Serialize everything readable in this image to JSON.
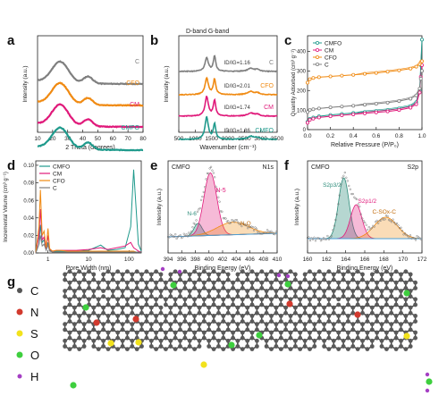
{
  "colors": {
    "C": "#7f7f7f",
    "CFO": "#f08a12",
    "CM": "#e0197a",
    "CMFO": "#1f9a8c",
    "blue": "#4a9fd8"
  },
  "panels": {
    "a": {
      "letter": "a",
      "xlabel": "2 Theta (degrees)",
      "ylabel": "Intensity (a.u.)",
      "xticks": [
        "10",
        "20",
        "30",
        "40",
        "50",
        "60",
        "70",
        "80"
      ],
      "labels": [
        "C",
        "CFO",
        "CM",
        "CMFO"
      ]
    },
    "b": {
      "letter": "b",
      "xlabel": "Wavenumber (cm⁻¹)",
      "ylabel": "Intensity (a.u.)",
      "xticks": [
        "500",
        "1000",
        "1500",
        "2000",
        "2500",
        "3000",
        "3500"
      ],
      "header": "D-band G-band",
      "labels": [
        "C",
        "CFO",
        "CM",
        "CMFO"
      ],
      "ratios": [
        "ID/IG=1.16",
        "ID/IG=2.01",
        "ID/IG=1.74",
        "ID/IG=1.86"
      ]
    },
    "c": {
      "letter": "c",
      "xlabel": "Relative Pressure (P/P₀)",
      "ylabel": "Quantity Adsorbed (cm³ g⁻¹)",
      "xticks": [
        "0.0",
        "0.2",
        "0.4",
        "0.6",
        "0.8",
        "1.0"
      ],
      "yticks": [
        "0",
        "100",
        "200",
        "300",
        "400"
      ],
      "legend": [
        "CMFO",
        "CM",
        "CFO",
        "C"
      ]
    },
    "d": {
      "letter": "d",
      "xlabel": "Pore Width (nm)",
      "ylabel": "Incremental Volume (cm³ g⁻¹)",
      "xticks": [
        "1",
        "10",
        "100"
      ],
      "yticks": [
        "0.00",
        "0.02",
        "0.04",
        "0.06",
        "0.08",
        "0.10"
      ],
      "legend": [
        "CMFO",
        "CM",
        "CFO",
        "C"
      ]
    },
    "e": {
      "letter": "e",
      "xlabel": "Binding Energy (eV)",
      "ylabel": "Intensity (a.u.)",
      "tag": "CMFO",
      "element": "N1s",
      "xticks": [
        "394",
        "396",
        "398",
        "400",
        "402",
        "404",
        "406",
        "408",
        "410"
      ],
      "peaks": [
        "N-6",
        "N-5",
        "N-Q"
      ]
    },
    "f": {
      "letter": "f",
      "xlabel": "Binding Energy (eV)",
      "ylabel": "Intensity (a.u.)",
      "tag": "CMFO",
      "element": "S2p",
      "xticks": [
        "160",
        "162",
        "164",
        "166",
        "168",
        "170",
        "172"
      ],
      "peaks": [
        "S2p3/2",
        "S2p1/2",
        "C-SOx-C"
      ]
    },
    "g": {
      "letter": "g",
      "legend": [
        "C",
        "N",
        "S",
        "O",
        "H"
      ]
    }
  },
  "chart_data": [
    {
      "panel": "a",
      "type": "line",
      "xlabel": "2 Theta (degrees)",
      "ylabel": "Intensity (a.u.)",
      "xlim": [
        10,
        80
      ],
      "series": [
        {
          "name": "C",
          "peak_2theta": 25
        },
        {
          "name": "CFO",
          "peak_2theta": 25
        },
        {
          "name": "CM",
          "peak_2theta": 25
        },
        {
          "name": "CMFO",
          "peak_2theta": 25
        }
      ]
    },
    {
      "panel": "b",
      "type": "line",
      "xlabel": "Wavenumber (cm⁻¹)",
      "ylabel": "Intensity (a.u.)",
      "xlim": [
        500,
        3500
      ],
      "series": [
        {
          "name": "C",
          "ID_IG": 1.16,
          "D_band": 1350,
          "G_band": 1590
        },
        {
          "name": "CFO",
          "ID_IG": 2.01,
          "D_band": 1350,
          "G_band": 1590
        },
        {
          "name": "CM",
          "ID_IG": 1.74,
          "D_band": 1350,
          "G_band": 1590
        },
        {
          "name": "CMFO",
          "ID_IG": 1.86,
          "D_band": 1350,
          "G_band": 1590
        }
      ]
    },
    {
      "panel": "c",
      "type": "line",
      "xlabel": "Relative Pressure (P/P₀)",
      "ylabel": "Quantity Adsorbed (cm³ g⁻¹)",
      "xlim": [
        0,
        1
      ],
      "ylim": [
        0,
        480
      ],
      "x": [
        0.0,
        0.02,
        0.05,
        0.1,
        0.2,
        0.3,
        0.4,
        0.5,
        0.6,
        0.7,
        0.8,
        0.9,
        0.95,
        0.98,
        0.99,
        1.0
      ],
      "series": [
        {
          "name": "CMFO",
          "values": [
            40,
            55,
            62,
            68,
            75,
            80,
            85,
            90,
            95,
            100,
            108,
            120,
            140,
            200,
            330,
            460
          ]
        },
        {
          "name": "CM",
          "values": [
            35,
            50,
            56,
            62,
            68,
            73,
            78,
            83,
            88,
            93,
            100,
            112,
            130,
            190,
            270,
            330
          ]
        },
        {
          "name": "CFO",
          "values": [
            240,
            258,
            264,
            268,
            272,
            276,
            280,
            285,
            290,
            296,
            303,
            312,
            322,
            335,
            345,
            350
          ]
        },
        {
          "name": "C",
          "values": [
            90,
            100,
            104,
            108,
            114,
            118,
            122,
            127,
            132,
            138,
            146,
            158,
            175,
            210,
            260,
            300
          ]
        }
      ]
    },
    {
      "panel": "d",
      "type": "line",
      "xlabel": "Pore Width (nm)",
      "ylabel": "Incremental Volume (cm³ g⁻¹)",
      "xscale": "log",
      "xlim": [
        0.5,
        200
      ],
      "ylim": [
        0,
        0.1
      ],
      "series": [
        {
          "name": "CMFO",
          "x": [
            0.5,
            0.6,
            0.65,
            0.72,
            0.8,
            0.9,
            1.0,
            1.1,
            1.3,
            1.6,
            2,
            3,
            5,
            10,
            20,
            30,
            50,
            80,
            110,
            130,
            150,
            170,
            200
          ],
          "values": [
            0,
            0.01,
            0.032,
            0.012,
            0.015,
            0.004,
            0.012,
            0.003,
            0.001,
            0.002,
            0.002,
            0.002,
            0.002,
            0.003,
            0.009,
            0.003,
            0.004,
            0.006,
            0.03,
            0.095,
            0.05,
            0.01,
            0.002
          ]
        },
        {
          "name": "CM",
          "x": [
            0.5,
            0.6,
            0.65,
            0.72,
            0.8,
            0.9,
            1.0,
            1.1,
            1.3,
            1.6,
            2,
            3,
            5,
            10,
            20,
            30,
            50,
            80,
            110,
            130,
            150,
            170,
            200
          ],
          "values": [
            0,
            0.02,
            0.05,
            0.015,
            0.018,
            0.005,
            0.02,
            0.004,
            0.002,
            0.003,
            0.003,
            0.003,
            0.003,
            0.004,
            0.006,
            0.004,
            0.006,
            0.008,
            0.012,
            0.006,
            0.004,
            0.002,
            0.001
          ]
        },
        {
          "name": "CFO",
          "x": [
            0.5,
            0.6,
            0.65,
            0.72,
            0.8,
            0.9,
            1.0,
            1.1,
            1.3,
            1.6,
            2,
            3,
            5,
            10,
            20,
            30,
            50,
            80,
            110,
            130,
            150,
            170,
            200
          ],
          "values": [
            0,
            0.03,
            0.072,
            0.02,
            0.025,
            0.006,
            0.028,
            0.005,
            0.002,
            0.003,
            0.003,
            0.002,
            0.002,
            0.002,
            0.002,
            0.002,
            0.002,
            0.002,
            0.002,
            0.002,
            0.001,
            0.001,
            0.001
          ]
        },
        {
          "name": "C",
          "x": [
            0.5,
            0.6,
            0.65,
            0.72,
            0.8,
            0.9,
            1.0,
            1.1,
            1.3,
            1.6,
            2,
            3,
            5,
            10,
            20,
            30,
            50,
            80,
            110,
            130,
            150,
            170,
            200
          ],
          "values": [
            0,
            0.01,
            0.02,
            0.008,
            0.01,
            0.003,
            0.009,
            0.002,
            0.001,
            0.001,
            0.001,
            0.001,
            0.001,
            0.001,
            0.001,
            0.001,
            0.001,
            0.001,
            0.001,
            0.001,
            0.001,
            0.001,
            0.001
          ]
        }
      ]
    },
    {
      "panel": "e",
      "type": "line",
      "xlabel": "Binding Energy (eV)",
      "ylabel": "Intensity (a.u.)",
      "xlim": [
        394,
        410
      ],
      "peaks": [
        {
          "name": "N-6",
          "center": 398.4
        },
        {
          "name": "N-5",
          "center": 400.2
        },
        {
          "name": "N-Q",
          "center": 403.5
        }
      ]
    },
    {
      "panel": "f",
      "type": "line",
      "xlabel": "Binding Energy (eV)",
      "ylabel": "Intensity (a.u.)",
      "xlim": [
        160,
        172
      ],
      "peaks": [
        {
          "name": "S2p3/2",
          "center": 163.8
        },
        {
          "name": "S2p1/2",
          "center": 165.1
        },
        {
          "name": "C-SOx-C",
          "center": 168.2
        }
      ]
    }
  ]
}
